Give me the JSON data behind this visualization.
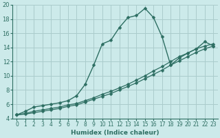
{
  "xlabel": "Humidex (Indice chaleur)",
  "background_color": "#cceaea",
  "grid_color": "#aacccc",
  "line_color": "#2d6e62",
  "xlim": [
    -0.5,
    23.5
  ],
  "ylim": [
    4,
    20
  ],
  "xticks": [
    0,
    1,
    2,
    3,
    4,
    5,
    6,
    7,
    8,
    9,
    10,
    11,
    12,
    13,
    14,
    15,
    16,
    17,
    18,
    19,
    20,
    21,
    22,
    23
  ],
  "yticks": [
    4,
    6,
    8,
    10,
    12,
    14,
    16,
    18,
    20
  ],
  "series1_x": [
    0,
    1,
    2,
    3,
    4,
    5,
    6,
    7,
    8,
    9,
    10,
    11,
    12,
    13,
    14,
    15,
    16,
    17,
    18,
    19,
    20,
    21,
    22,
    23
  ],
  "series1_y": [
    4.5,
    5.0,
    5.6,
    5.8,
    6.0,
    6.2,
    6.5,
    7.2,
    8.8,
    11.5,
    14.5,
    15.0,
    16.8,
    18.2,
    18.5,
    19.5,
    18.2,
    15.5,
    11.5,
    12.5,
    13.2,
    13.8,
    14.8,
    14.2
  ],
  "series2_x": [
    0,
    1,
    2,
    3,
    4,
    5,
    6,
    7,
    8,
    9,
    10,
    11,
    12,
    13,
    14,
    15,
    16,
    17,
    18,
    19,
    20,
    21,
    22,
    23
  ],
  "series2_y": [
    4.5,
    4.7,
    5.0,
    5.2,
    5.4,
    5.6,
    5.9,
    6.1,
    6.5,
    6.9,
    7.4,
    7.8,
    8.3,
    8.8,
    9.4,
    10.0,
    10.7,
    11.3,
    12.0,
    12.7,
    13.2,
    13.8,
    14.2,
    14.5
  ],
  "series3_x": [
    0,
    1,
    2,
    3,
    4,
    5,
    6,
    7,
    8,
    9,
    10,
    11,
    12,
    13,
    14,
    15,
    16,
    17,
    18,
    19,
    20,
    21,
    22,
    23
  ],
  "series3_y": [
    4.5,
    4.6,
    4.8,
    5.0,
    5.2,
    5.4,
    5.7,
    5.9,
    6.3,
    6.7,
    7.1,
    7.5,
    8.0,
    8.5,
    9.0,
    9.6,
    10.2,
    10.8,
    11.5,
    12.1,
    12.7,
    13.3,
    13.8,
    14.2
  ]
}
